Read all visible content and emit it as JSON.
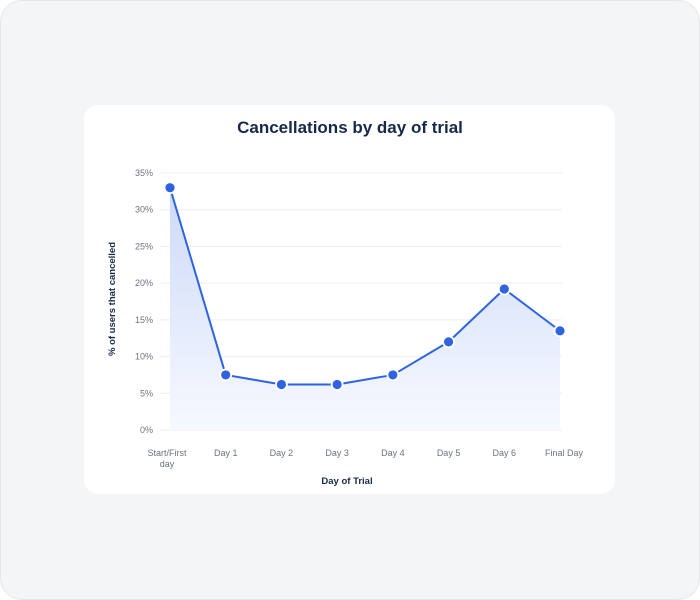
{
  "chart_data": {
    "type": "area",
    "title": "Cancellations by day of trial",
    "xlabel": "Day of Trial",
    "ylabel": "% of users that cancelled",
    "categories": [
      "Start/First day",
      "Day 1",
      "Day 2",
      "Day 3",
      "Day 4",
      "Day 5",
      "Day 6",
      "Final Day"
    ],
    "category_lines": [
      [
        "Start/First",
        "day"
      ],
      [
        "Day 1"
      ],
      [
        "Day 2"
      ],
      [
        "Day 3"
      ],
      [
        "Day 4"
      ],
      [
        "Day 5"
      ],
      [
        "Day 6"
      ],
      [
        "Final Day"
      ]
    ],
    "series": [
      {
        "name": "% of users that cancelled",
        "values": [
          33,
          7.5,
          6.2,
          6.2,
          7.5,
          12,
          19.2,
          13.5
        ]
      }
    ],
    "ylim": [
      0,
      35
    ],
    "yticks": [
      0,
      5,
      10,
      15,
      20,
      25,
      30,
      35
    ],
    "ytick_labels": [
      "0%",
      "5%",
      "10%",
      "15%",
      "20%",
      "25%",
      "30%",
      "35%"
    ],
    "grid": true,
    "legend": "none",
    "colors": {
      "line": "#2f63e0",
      "fill_top": "#cdd9f7",
      "fill_bottom": "#f6f9ff",
      "grid": "#eceef2",
      "title": "#16294a"
    }
  }
}
